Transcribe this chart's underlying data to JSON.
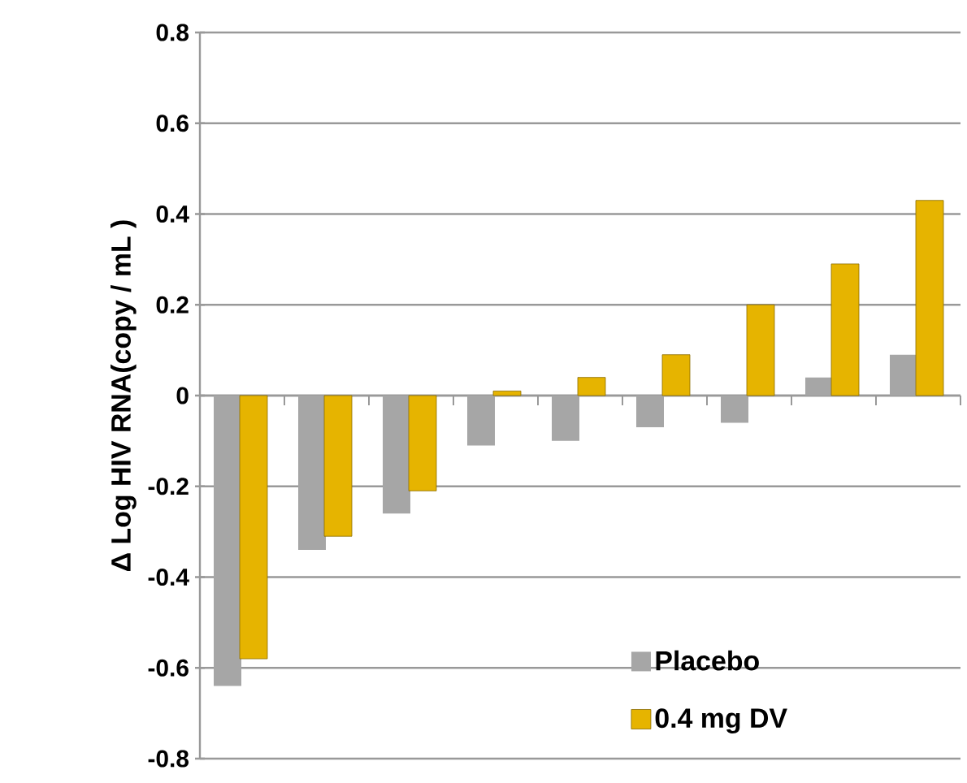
{
  "chart_data": {
    "type": "bar",
    "ylabel": "Δ Log HIV RNA(copy / mL )",
    "categories": [
      null,
      null,
      null,
      null,
      null,
      null,
      null,
      null,
      null
    ],
    "series": [
      {
        "name": "Placebo",
        "color": "#a6a6a6",
        "values": [
          -0.64,
          -0.34,
          -0.26,
          -0.11,
          -0.1,
          -0.07,
          -0.06,
          0.04,
          0.09
        ]
      },
      {
        "name": "0.4 mg DV",
        "color": "#e6b400",
        "values": [
          -0.58,
          -0.31,
          -0.21,
          0.01,
          0.04,
          0.09,
          0.2,
          0.29,
          0.43
        ]
      }
    ],
    "ylim": [
      -0.8,
      0.8
    ],
    "yticks": [
      -0.8,
      -0.6,
      -0.4,
      -0.2,
      0,
      0.2,
      0.4,
      0.6,
      0.8
    ],
    "grid": "y",
    "legend": "bottom right",
    "tick_labels": "y"
  }
}
